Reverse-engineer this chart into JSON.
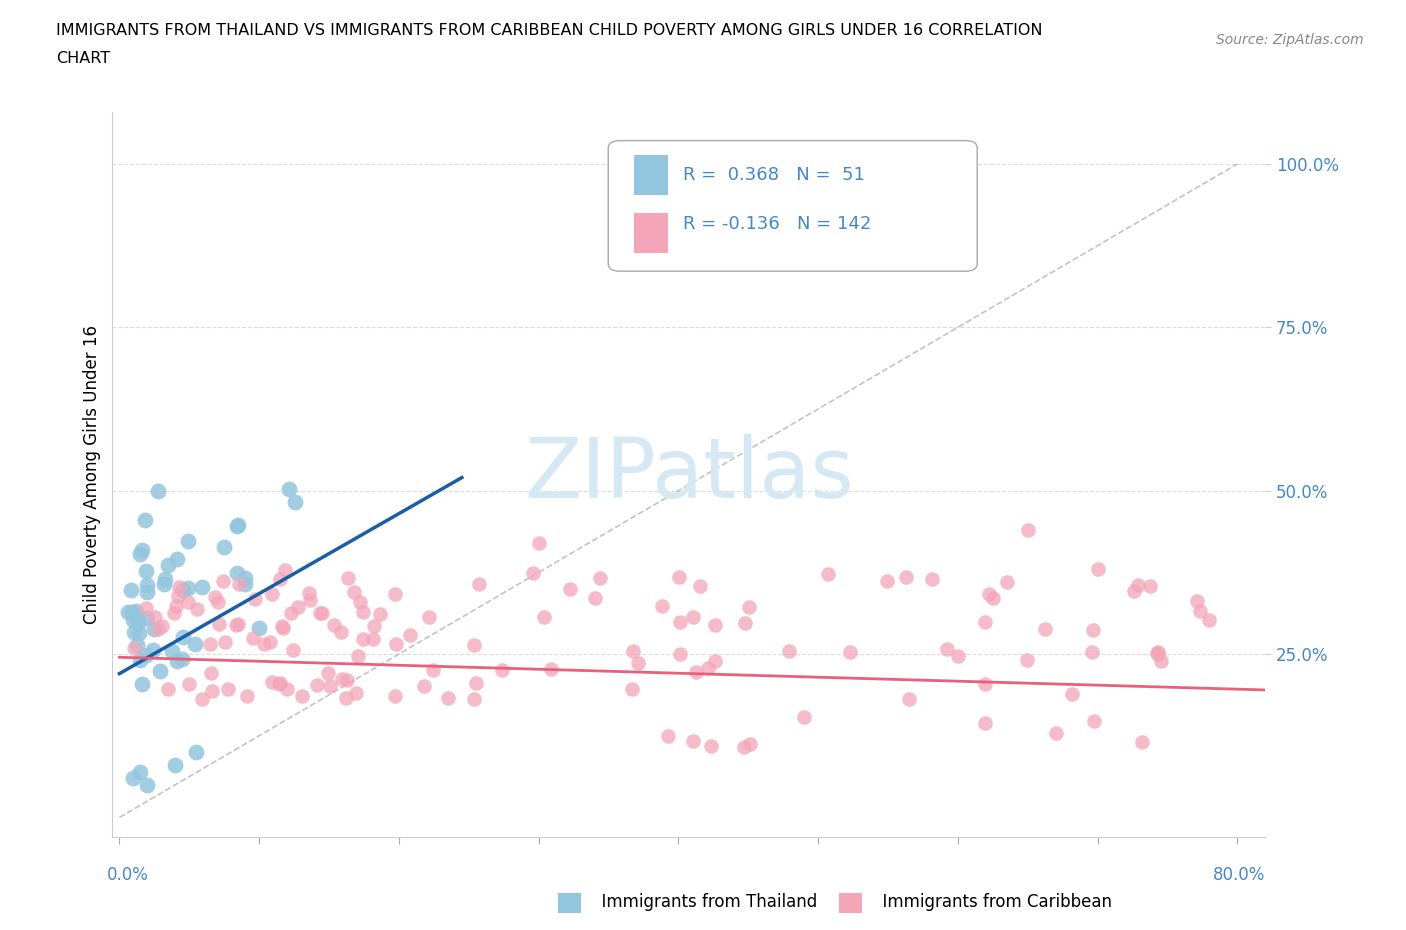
{
  "title_line1": "IMMIGRANTS FROM THAILAND VS IMMIGRANTS FROM CARIBBEAN CHILD POVERTY AMONG GIRLS UNDER 16 CORRELATION",
  "title_line2": "CHART",
  "source": "Source: ZipAtlas.com",
  "ylabel": "Child Poverty Among Girls Under 16",
  "r_thailand": 0.368,
  "n_thailand": 51,
  "r_caribbean": -0.136,
  "n_caribbean": 142,
  "thailand_scatter_color": "#92C5DE",
  "caribbean_scatter_color": "#F4A5B8",
  "thailand_line_color": "#1A5EA8",
  "caribbean_line_color": "#E8607A",
  "ytick_color": "#4488CC",
  "xtick_color": "#4488CC",
  "watermark_color": "#D5E9F5",
  "legend_border_color": "#AAAAAA",
  "grid_color": "#DDDDDD",
  "xlim": [
    -0.005,
    0.82
  ],
  "ylim": [
    -0.03,
    1.08
  ],
  "thailand_trend_x": [
    0.0,
    0.245
  ],
  "thailand_trend_y": [
    0.22,
    0.52
  ],
  "caribbean_trend_x": [
    0.0,
    0.82
  ],
  "caribbean_trend_y": [
    0.245,
    0.195
  ],
  "diag_line_x": [
    0.0,
    0.8
  ],
  "diag_line_y": [
    0.0,
    1.0
  ]
}
